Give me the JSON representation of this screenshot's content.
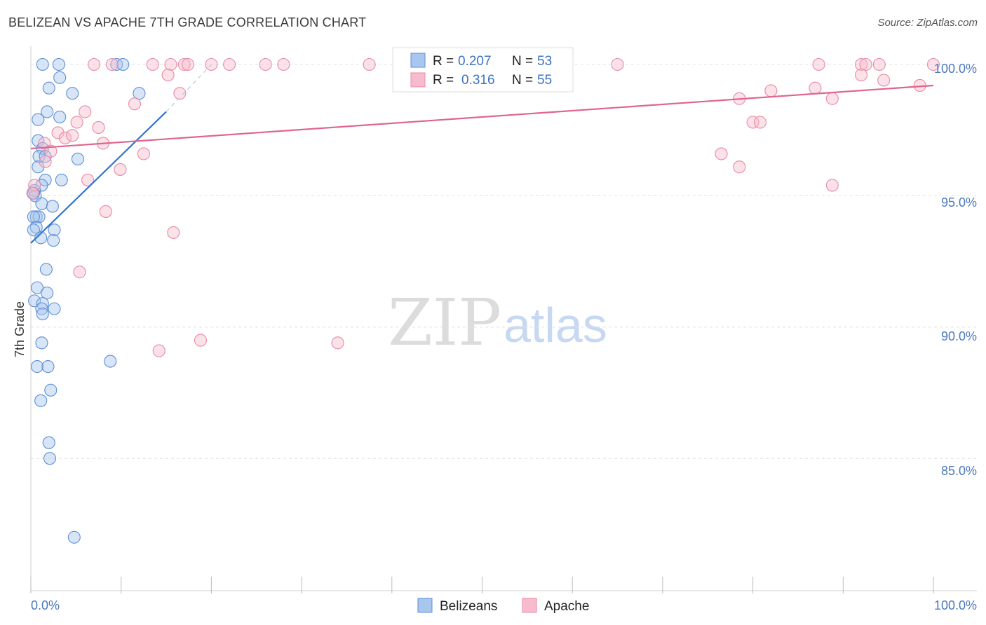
{
  "title": "BELIZEAN VS APACHE 7TH GRADE CORRELATION CHART",
  "source": "Source: ZipAtlas.com",
  "watermark": {
    "zip": "ZIP",
    "atlas": "atlas"
  },
  "colors": {
    "blue_fill": "#a9c6ee",
    "blue_stroke": "#5b8fd6",
    "blue_line": "#2f75d1",
    "pink_fill": "#f6bccd",
    "pink_stroke": "#e98aa7",
    "pink_line": "#e0648e",
    "axis_tick_text": "#4a78c2",
    "grid": "#e0e0e0"
  },
  "legend": {
    "items": [
      {
        "r_label": "R =",
        "r_value": "0.207",
        "n_label": "N =",
        "n_value": "53",
        "color": "blue"
      },
      {
        "r_label": "R =",
        "r_value": "0.316",
        "n_label": "N =",
        "n_value": "55",
        "color": "pink"
      }
    ]
  },
  "bottom_legend": [
    "Belizeans",
    "Apache"
  ],
  "chart_data": {
    "type": "scatter",
    "title": "BELIZEAN VS APACHE 7TH GRADE CORRELATION CHART",
    "xlabel": "",
    "ylabel": "7th Grade",
    "xlim": [
      0,
      100
    ],
    "ylim": [
      80.5,
      100.8
    ],
    "x_tick_labels": [
      "0.0%",
      "100.0%"
    ],
    "y_ticks": [
      100,
      95,
      90,
      85
    ],
    "y_tick_labels": [
      "100.0%",
      "95.0%",
      "90.0%",
      "85.0%"
    ],
    "grid": true,
    "series": [
      {
        "name": "Belizeans",
        "color": "blue",
        "points": [
          [
            1.3,
            100
          ],
          [
            3.1,
            100
          ],
          [
            9.5,
            100
          ],
          [
            10.2,
            100
          ],
          [
            3.2,
            99.5
          ],
          [
            2.0,
            99.1
          ],
          [
            4.6,
            98.9
          ],
          [
            12.0,
            98.9
          ],
          [
            1.8,
            98.2
          ],
          [
            3.2,
            98.0
          ],
          [
            0.8,
            97.9
          ],
          [
            0.8,
            97.1
          ],
          [
            1.3,
            96.8
          ],
          [
            0.9,
            96.5
          ],
          [
            1.6,
            96.5
          ],
          [
            5.2,
            96.4
          ],
          [
            0.8,
            96.1
          ],
          [
            1.6,
            95.6
          ],
          [
            3.4,
            95.6
          ],
          [
            1.2,
            95.4
          ],
          [
            0.4,
            95.2
          ],
          [
            0.5,
            95.0
          ],
          [
            0.3,
            95.1
          ],
          [
            1.2,
            94.7
          ],
          [
            2.4,
            94.6
          ],
          [
            0.6,
            94.2
          ],
          [
            0.9,
            94.2
          ],
          [
            0.3,
            94.2
          ],
          [
            0.6,
            93.8
          ],
          [
            0.3,
            93.7
          ],
          [
            2.6,
            93.7
          ],
          [
            1.1,
            93.4
          ],
          [
            2.5,
            93.3
          ],
          [
            1.7,
            92.2
          ],
          [
            0.7,
            91.5
          ],
          [
            1.8,
            91.3
          ],
          [
            0.4,
            91.0
          ],
          [
            1.3,
            90.9
          ],
          [
            1.2,
            90.7
          ],
          [
            2.6,
            90.7
          ],
          [
            1.3,
            90.5
          ],
          [
            1.2,
            89.4
          ],
          [
            0.7,
            88.5
          ],
          [
            1.9,
            88.5
          ],
          [
            8.8,
            88.7
          ],
          [
            2.2,
            87.6
          ],
          [
            1.1,
            87.2
          ],
          [
            2.0,
            85.6
          ],
          [
            2.1,
            85.0
          ],
          [
            4.8,
            82.0
          ]
        ]
      },
      {
        "name": "Apache",
        "color": "pink",
        "points": [
          [
            7.0,
            100
          ],
          [
            9.0,
            100
          ],
          [
            13.5,
            100
          ],
          [
            15.5,
            100
          ],
          [
            17.0,
            100
          ],
          [
            17.4,
            100
          ],
          [
            20.0,
            100
          ],
          [
            22.0,
            100
          ],
          [
            26.0,
            100
          ],
          [
            28.0,
            100
          ],
          [
            37.5,
            100
          ],
          [
            65.0,
            100
          ],
          [
            87.3,
            100
          ],
          [
            92.0,
            100
          ],
          [
            92.5,
            100
          ],
          [
            94.0,
            100
          ],
          [
            100.0,
            100
          ],
          [
            15.2,
            99.6
          ],
          [
            92.0,
            99.6
          ],
          [
            94.5,
            99.4
          ],
          [
            98.5,
            99.2
          ],
          [
            86.9,
            99.1
          ],
          [
            82.0,
            99.0
          ],
          [
            16.5,
            98.9
          ],
          [
            78.5,
            98.7
          ],
          [
            88.8,
            98.7
          ],
          [
            11.5,
            98.5
          ],
          [
            6.0,
            98.2
          ],
          [
            5.1,
            97.8
          ],
          [
            80.0,
            97.8
          ],
          [
            80.8,
            97.8
          ],
          [
            7.5,
            97.6
          ],
          [
            3.0,
            97.4
          ],
          [
            3.8,
            97.2
          ],
          [
            4.6,
            97.3
          ],
          [
            8.0,
            97.0
          ],
          [
            1.5,
            97.0
          ],
          [
            2.2,
            96.7
          ],
          [
            1.6,
            96.3
          ],
          [
            12.5,
            96.6
          ],
          [
            76.5,
            96.6
          ],
          [
            9.9,
            96.0
          ],
          [
            78.5,
            96.1
          ],
          [
            6.3,
            95.6
          ],
          [
            0.4,
            95.4
          ],
          [
            88.8,
            95.4
          ],
          [
            0.2,
            95.1
          ],
          [
            8.3,
            94.4
          ],
          [
            15.8,
            93.6
          ],
          [
            5.4,
            92.1
          ],
          [
            18.8,
            89.5
          ],
          [
            14.2,
            89.1
          ],
          [
            34.0,
            89.4
          ]
        ]
      }
    ],
    "trend_lines": [
      {
        "series": "Belizeans",
        "x": [
          0,
          15
        ],
        "y": [
          93.2,
          98.2
        ],
        "extension_x": [
          15,
          20
        ],
        "extension_y": [
          98.2,
          100.0
        ]
      },
      {
        "series": "Apache",
        "x": [
          0,
          100
        ],
        "y": [
          96.8,
          99.2
        ]
      }
    ]
  }
}
